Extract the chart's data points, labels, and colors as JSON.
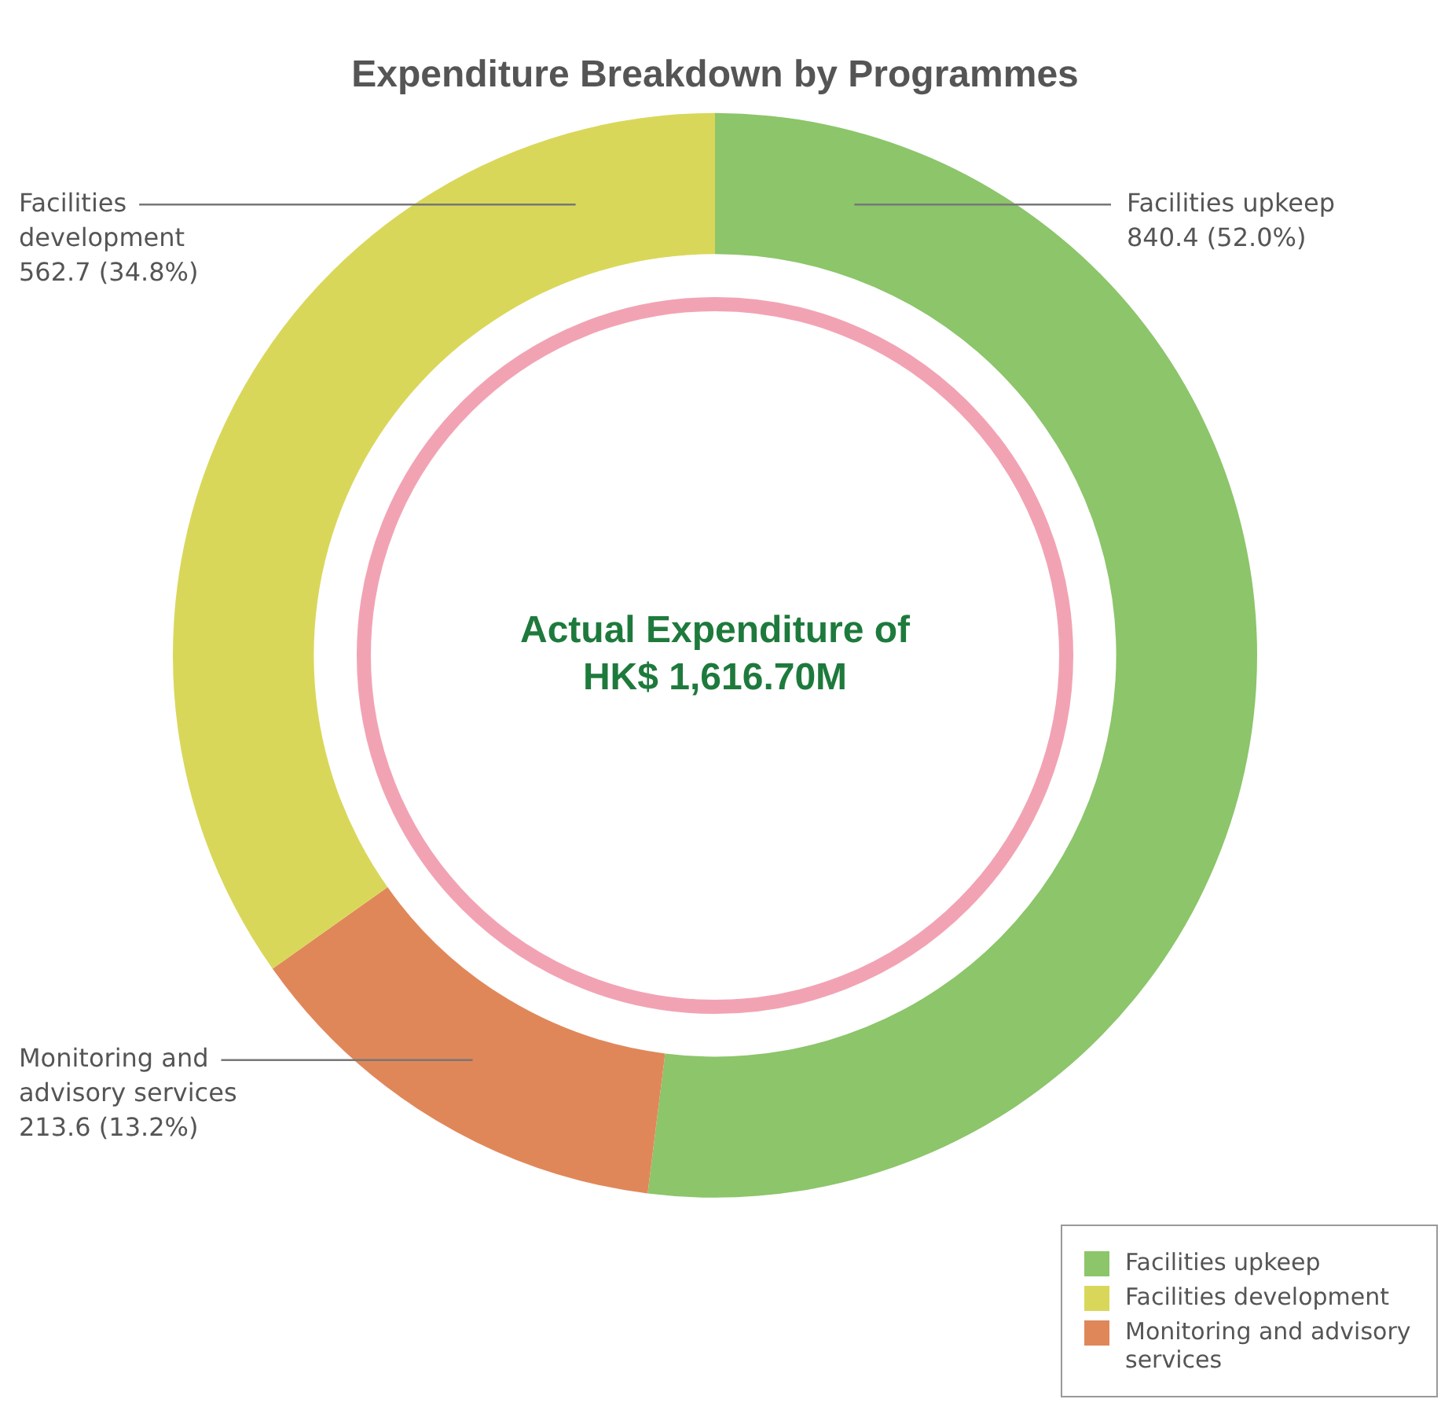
{
  "chart_data": {
    "type": "donut",
    "title": "Expenditure Breakdown by Programmes",
    "categories": [
      "Facilities upkeep",
      "Monitoring and advisory services",
      "Facilities development"
    ],
    "values": [
      840.4,
      213.6,
      562.7
    ],
    "colors": [
      "#8cc56a",
      "#e0875a",
      "#d9d75a"
    ],
    "value_labels": [
      "840.4 (52.0%)",
      "213.6 (13.2%)",
      "562.7 (34.8%)"
    ],
    "annotations": [
      "Actual Expenditure of HK$ 1,616.70M"
    ],
    "legend": "bottom right"
  }
}
